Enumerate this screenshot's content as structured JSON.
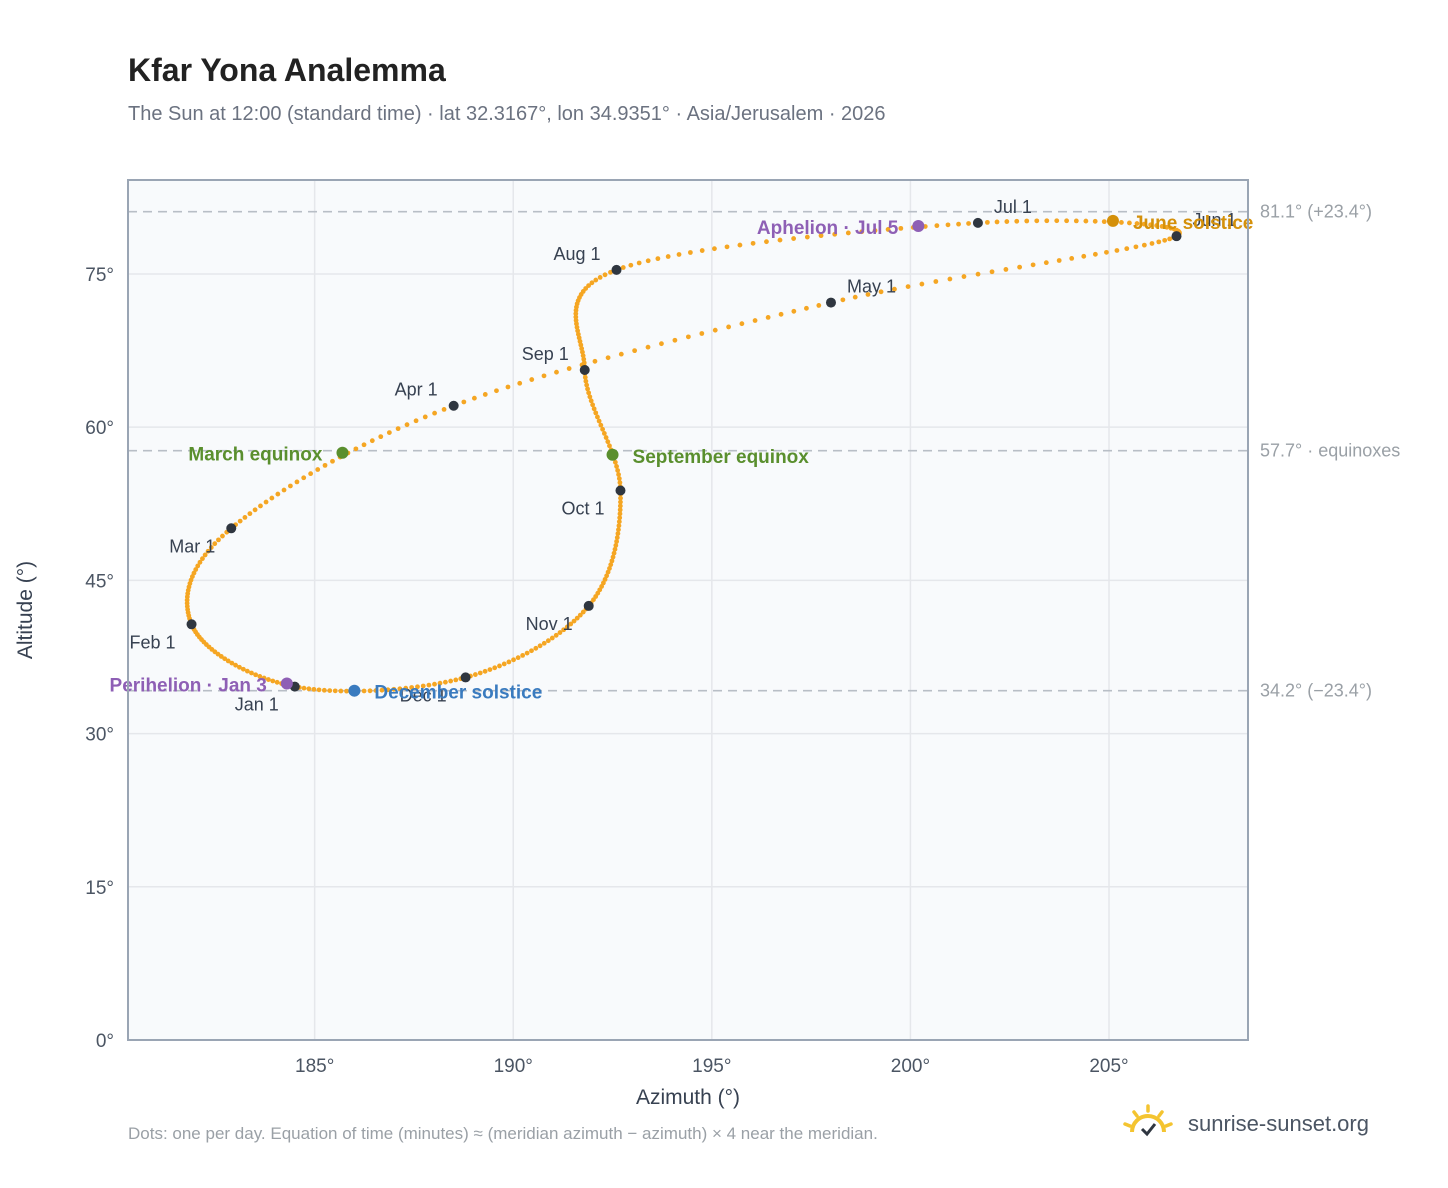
{
  "header": {
    "title": "Kfar Yona Analemma",
    "subtitle": "The Sun at 12:00 (standard time) · lat 32.3167°, lon 34.9351° · Asia/Jerusalem · 2026"
  },
  "footer": {
    "note": "Dots: one per day. Equation of time (minutes) ≈ (meridian azimuth − azimuth) × 4 near the meridian.",
    "brand": "sunrise-sunset.org"
  },
  "colors": {
    "curve": "#f5a623",
    "month_marker": "#2f3640",
    "equinox": "#5a8f2e",
    "june_solstice": "#d4900a",
    "december_solstice": "#3a7bbf",
    "apsis": "#8e5fb5",
    "reference_line": "#b8bec6",
    "plot_bg": "#f8fafc",
    "grid": "#e5e7eb",
    "frame": "#9aa5b4"
  },
  "chart_data": {
    "type": "scatter",
    "xlabel": "Azimuth (°)",
    "ylabel": "Altitude (°)",
    "xlim": [
      180.3,
      208.5
    ],
    "ylim": [
      0,
      84.2
    ],
    "xticks": [
      185,
      190,
      195,
      200,
      205
    ],
    "xtick_labels": [
      "185°",
      "190°",
      "195°",
      "200°",
      "205°"
    ],
    "yticks": [
      0,
      15,
      30,
      45,
      60,
      75
    ],
    "ytick_labels": [
      "0°",
      "15°",
      "30°",
      "45°",
      "60°",
      "75°"
    ],
    "grid": true,
    "series_description": "one dot per day",
    "reference_lines": [
      {
        "altitude": 81.1,
        "label": "81.1° (+23.4°)"
      },
      {
        "altitude": 57.7,
        "label": "57.7° · equinoxes"
      },
      {
        "altitude": 34.2,
        "label": "34.2° (−23.4°)"
      }
    ],
    "month_markers": [
      {
        "label": "Jan 1",
        "az": 184.5,
        "alt": 34.6
      },
      {
        "label": "Feb 1",
        "az": 181.9,
        "alt": 40.7
      },
      {
        "label": "Mar 1",
        "az": 182.9,
        "alt": 50.1
      },
      {
        "label": "Apr 1",
        "az": 188.5,
        "alt": 62.1
      },
      {
        "label": "May 1",
        "az": 198.0,
        "alt": 72.2
      },
      {
        "label": "Jun 1",
        "az": 206.7,
        "alt": 78.7
      },
      {
        "label": "Jul 1",
        "az": 201.7,
        "alt": 80.0
      },
      {
        "label": "Aug 1",
        "az": 192.6,
        "alt": 75.4
      },
      {
        "label": "Sep 1",
        "az": 191.8,
        "alt": 65.6
      },
      {
        "label": "Oct 1",
        "az": 192.7,
        "alt": 53.8
      },
      {
        "label": "Nov 1",
        "az": 191.9,
        "alt": 42.5
      },
      {
        "label": "Dec 1",
        "az": 188.8,
        "alt": 35.5
      }
    ],
    "events": [
      {
        "label": "March equinox",
        "az": 185.7,
        "alt": 57.5,
        "color_key": "equinox"
      },
      {
        "label": "September equinox",
        "az": 192.5,
        "alt": 57.3,
        "color_key": "equinox"
      },
      {
        "label": "June solstice",
        "az": 205.1,
        "alt": 80.2,
        "color_key": "june_solstice"
      },
      {
        "label": "December solstice",
        "az": 186.0,
        "alt": 34.2,
        "color_key": "december_solstice"
      },
      {
        "label": "Aphelion · Jul 5",
        "az": 200.2,
        "alt": 79.7,
        "color_key": "apsis"
      },
      {
        "label": "Perihelion · Jan 3",
        "az": 184.3,
        "alt": 34.9,
        "color_key": "apsis"
      }
    ]
  }
}
